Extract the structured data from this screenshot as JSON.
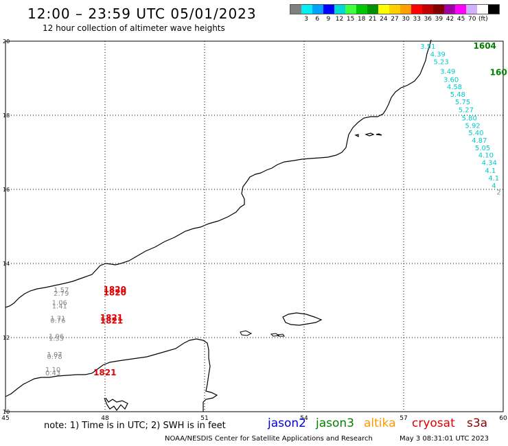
{
  "header": {
    "title": "12:00 – 23:59 UTC 05/01/2023",
    "subtitle": "12 hour collection of altimeter wave heights"
  },
  "legend": {
    "colors": [
      "#7f7f7f",
      "#00f0f0",
      "#00a0ff",
      "#0000ff",
      "#00d8d8",
      "#40ff40",
      "#00c800",
      "#009000",
      "#ffff00",
      "#ffd000",
      "#ffa000",
      "#ff0000",
      "#c00000",
      "#800000",
      "#a000a0",
      "#ff00ff",
      "#d0b0ff",
      "#ffffff",
      "#000000"
    ],
    "labels": [
      "3",
      "6",
      "9",
      "12",
      "15",
      "18",
      "21",
      "24",
      "27",
      "30",
      "33",
      "36",
      "39",
      "42",
      "45",
      "70",
      "(ft)"
    ]
  },
  "axes": {
    "x_ticks": [
      "45",
      "48",
      "51",
      "54",
      "57",
      "60"
    ],
    "y_ticks": [
      "10",
      "12",
      "14",
      "16",
      "18",
      "20"
    ],
    "x_range": [
      45,
      60
    ],
    "y_range": [
      10,
      20
    ]
  },
  "tracks": [
    {
      "satellite": "jason3-time",
      "time_labels": [
        {
          "text": "1604",
          "color": "#008000",
          "lon": 59.1,
          "lat": 19.8
        },
        {
          "text": "160",
          "color": "#008000",
          "lon": 59.6,
          "lat": 19.08
        }
      ]
    },
    {
      "satellite": "jason3",
      "color": "#00c8c8",
      "points": [
        {
          "text": "3.51",
          "lon": 57.5,
          "lat": 19.8
        },
        {
          "text": "4.39",
          "lon": 57.8,
          "lat": 19.58
        },
        {
          "text": "5.23",
          "lon": 57.9,
          "lat": 19.38
        },
        {
          "text": "3.49",
          "lon": 58.1,
          "lat": 19.12
        },
        {
          "text": "3.60",
          "lon": 58.2,
          "lat": 18.9
        },
        {
          "text": "4.58",
          "lon": 58.3,
          "lat": 18.7
        },
        {
          "text": "5.48",
          "lon": 58.4,
          "lat": 18.5
        },
        {
          "text": "5.75",
          "lon": 58.55,
          "lat": 18.3
        },
        {
          "text": "5.27",
          "lon": 58.65,
          "lat": 18.08
        },
        {
          "text": "5.80",
          "lon": 58.75,
          "lat": 17.86
        },
        {
          "text": "5.92",
          "lon": 58.85,
          "lat": 17.66
        },
        {
          "text": "5.40",
          "lon": 58.95,
          "lat": 17.46
        },
        {
          "text": "4.87",
          "lon": 59.05,
          "lat": 17.26
        },
        {
          "text": "5.05",
          "lon": 59.15,
          "lat": 17.06
        },
        {
          "text": "4.10",
          "lon": 59.25,
          "lat": 16.86
        },
        {
          "text": "4.34",
          "lon": 59.35,
          "lat": 16.66
        },
        {
          "text": "4.1",
          "lon": 59.45,
          "lat": 16.44
        },
        {
          "text": "4.1",
          "lon": 59.55,
          "lat": 16.24
        },
        {
          "text": "4",
          "lon": 59.65,
          "lat": 16.04
        }
      ]
    },
    {
      "satellite": "jason3-grey",
      "color": "#888888",
      "points": [
        {
          "text": "2",
          "lon": 59.8,
          "lat": 15.86
        }
      ]
    },
    {
      "satellite": "cryosat-values",
      "color": "#888888",
      "points": [
        {
          "text": "1.57",
          "lon": 46.45,
          "lat": 13.22
        },
        {
          "text": "2.79",
          "lon": 46.45,
          "lat": 13.13
        },
        {
          "text": "1.06",
          "lon": 46.4,
          "lat": 12.88
        },
        {
          "text": "1.41",
          "lon": 46.4,
          "lat": 12.79
        },
        {
          "text": "1.71",
          "lon": 46.35,
          "lat": 12.45
        },
        {
          "text": "0.76",
          "lon": 46.35,
          "lat": 12.4
        },
        {
          "text": "1.06",
          "lon": 46.3,
          "lat": 11.97
        },
        {
          "text": "1.35",
          "lon": 46.3,
          "lat": 11.92
        },
        {
          "text": "1.07",
          "lon": 46.25,
          "lat": 11.48
        },
        {
          "text": "0.78",
          "lon": 46.25,
          "lat": 11.43
        },
        {
          "text": "1.10",
          "lon": 46.2,
          "lat": 11.07
        },
        {
          "text": "0.43",
          "lon": 46.2,
          "lat": 10.98
        }
      ]
    },
    {
      "satellite": "cryosat-time",
      "time_labels": [
        {
          "text": "1820",
          "color": "#e00000",
          "lon": 47.95,
          "lat": 13.22
        },
        {
          "text": "1820",
          "color": "#e00000",
          "lon": 47.95,
          "lat": 13.14
        },
        {
          "text": "1821",
          "color": "#e00000",
          "lon": 47.85,
          "lat": 12.46
        },
        {
          "text": "1821",
          "color": "#e00000",
          "lon": 47.85,
          "lat": 12.38
        },
        {
          "text": "1821",
          "color": "#e00000",
          "lon": 47.65,
          "lat": 10.98
        }
      ]
    }
  ],
  "footer": {
    "note": "note: 1) Time is in UTC; 2) SWH is in feet",
    "satellites": [
      {
        "label": "jason2",
        "color": "#0000dd"
      },
      {
        "label": "jason3",
        "color": "#008000"
      },
      {
        "label": "altika",
        "color": "#ff9900"
      },
      {
        "label": "cryosat",
        "color": "#dd0000"
      },
      {
        "label": "s3a",
        "color": "#880000"
      }
    ],
    "credit": "NOAA/NESDIS Center for Satellite Applications and Research",
    "timestamp": "May  3 08:31:01 UTC 2023"
  }
}
